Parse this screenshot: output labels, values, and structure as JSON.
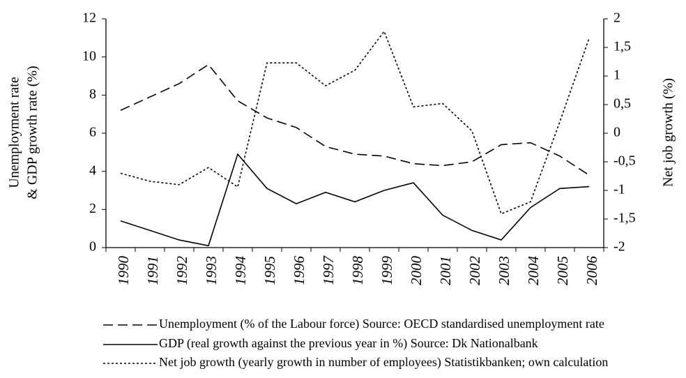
{
  "chart_data": {
    "type": "line",
    "ylabel": [
      "Unemployment rate",
      "& GDP growth rate (%)"
    ],
    "y2label": "Net job growth (%)",
    "categories": [
      "1990",
      "1991",
      "1992",
      "1993",
      "1994",
      "1995",
      "1996",
      "1997",
      "1998",
      "1999",
      "2000",
      "2001",
      "2002",
      "2003",
      "2004",
      "2005",
      "2006"
    ],
    "series": [
      {
        "name": "Unemployment  (% of the Labour force) Source: OECD standardised unemployment rate",
        "color": "#000000",
        "dash": "dashed",
        "values": [
          7.2,
          7.9,
          8.6,
          9.6,
          7.7,
          6.8,
          6.3,
          5.3,
          4.9,
          4.8,
          4.4,
          4.3,
          4.5,
          5.4,
          5.5,
          4.8,
          3.8
        ]
      },
      {
        "name": "GDP (real growth against the previous year in %) Source: Dk Nationalbank",
        "color": "#000000",
        "dash": "solid",
        "values": [
          1.4,
          0.9,
          0.4,
          0.1,
          4.9,
          3.1,
          2.3,
          2.9,
          2.4,
          3.0,
          3.4,
          1.7,
          0.9,
          0.4,
          2.1,
          3.1,
          3.2
        ]
      },
      {
        "name": "Net job growth (yearly growth in number of employees) Statistikbanken; own calculation",
        "color": "#000000",
        "dash": "dotted",
        "axis": "y2",
        "values": [
          -0.7,
          -0.84,
          -0.9,
          -0.6,
          -0.94,
          1.23,
          1.23,
          0.83,
          1.1,
          1.78,
          0.46,
          0.52,
          0.04,
          -1.41,
          -1.2,
          0.2,
          1.66
        ]
      }
    ],
    "ylim": [
      0,
      12
    ],
    "yticks": [
      0,
      2,
      4,
      6,
      8,
      10,
      12
    ],
    "y2lim": [
      -2,
      2
    ],
    "y2ticks": [
      -2,
      {
        "value": -1.5,
        "label": "-1,5"
      },
      -1,
      {
        "value": -0.5,
        "label": "-0,5"
      },
      0,
      {
        "value": 0.5,
        "label": "0,5"
      },
      1,
      {
        "value": 1.5,
        "label": "1,5"
      },
      2
    ],
    "grid": false
  }
}
